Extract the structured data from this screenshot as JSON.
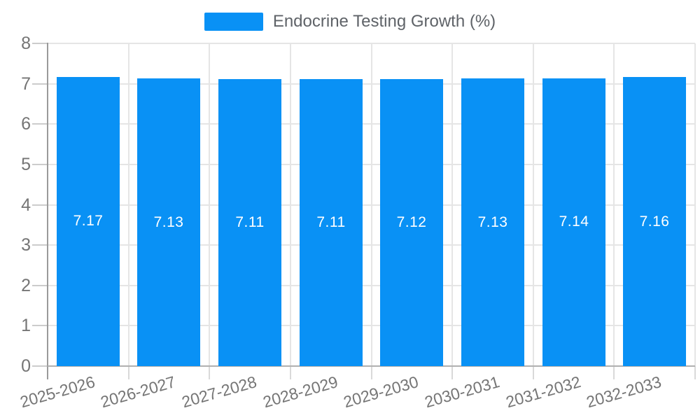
{
  "chart_data": {
    "type": "bar",
    "title": "",
    "legend": "Endocrine Testing Growth (%)",
    "legend_position": "top",
    "categories": [
      "2025-2026",
      "2026-2027",
      "2027-2028",
      "2028-2029",
      "2029-2030",
      "2030-2031",
      "2031-2032",
      "2032-2033"
    ],
    "values": [
      7.17,
      7.13,
      7.11,
      7.11,
      7.12,
      7.13,
      7.14,
      7.16
    ],
    "value_labels": [
      "7.17",
      "7.13",
      "7.11",
      "7.11",
      "7.12",
      "7.13",
      "7.14",
      "7.16"
    ],
    "xlabel": "",
    "ylabel": "",
    "ylim": [
      0,
      8
    ],
    "yticks": [
      0,
      1,
      2,
      3,
      4,
      5,
      6,
      7,
      8
    ],
    "grid": true,
    "x_label_rotation_deg": -16
  },
  "colors": {
    "bar": "#0991f5",
    "bar_label": "#ffffff",
    "grid": "#e5e5e5",
    "y_axis_line": "#9a9a9a",
    "x_axis_line": "#b0b0b0",
    "y_tick": "#cccccc",
    "x_tick": "#d9d9d9",
    "axis_label": "#757575",
    "legend_text": "#5f6368",
    "background": "#ffffff"
  }
}
